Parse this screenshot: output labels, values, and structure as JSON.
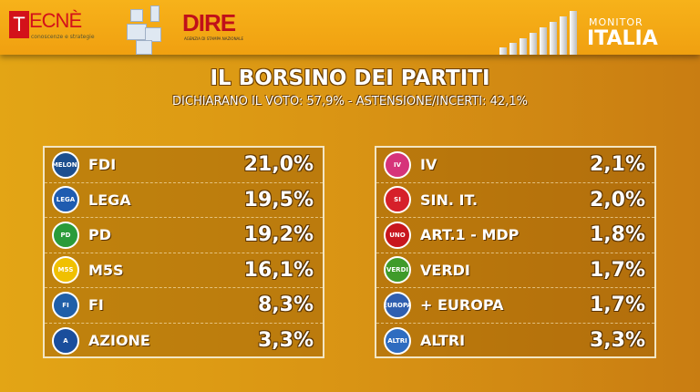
{
  "header": {
    "tecne_logo": "TECNÈ",
    "tecne_tagline": "conoscenze e strategie",
    "dire_logo": "DIRE",
    "dire_tagline": "AGENZIA DI STAMPA NAZIONALE",
    "monitor": "MONITOR",
    "italia": "ITALIA"
  },
  "title": "IL BORSINO DEI PARTITI",
  "subtitle": "DICHIARANO IL VOTO: 57,9% - ASTENSIONE/INCERTI: 42,1%",
  "left": [
    {
      "name": "FDI",
      "value": "21,0%",
      "logo": "MELONI",
      "color": "#1d4f8f"
    },
    {
      "name": "LEGA",
      "value": "19,5%",
      "logo": "LEGA",
      "color": "#1f5cb0"
    },
    {
      "name": "PD",
      "value": "19,2%",
      "logo": "PD",
      "color": "#2a9b3a"
    },
    {
      "name": "M5S",
      "value": "16,1%",
      "logo": "M5S",
      "color": "#f0c000"
    },
    {
      "name": "FI",
      "value": "8,3%",
      "logo": "FI",
      "color": "#1f5fa8"
    },
    {
      "name": "AZIONE",
      "value": "3,3%",
      "logo": "A",
      "color": "#1a4e9c"
    }
  ],
  "right": [
    {
      "name": "IV",
      "value": "2,1%",
      "logo": "IV",
      "color": "#d6337a"
    },
    {
      "name": "SIN. IT.",
      "value": "2,0%",
      "logo": "SI",
      "color": "#d6202a"
    },
    {
      "name": "ART.1 - MDP",
      "value": "1,8%",
      "logo": "UNO",
      "color": "#c8161e"
    },
    {
      "name": "VERDI",
      "value": "1,7%",
      "logo": "VERDI",
      "color": "#3f9b2a"
    },
    {
      "name": "+ EUROPA",
      "value": "1,7%",
      "logo": "EUROPA",
      "color": "#2f5fb0"
    },
    {
      "name": "ALTRI",
      "value": "3,3%",
      "logo": "ALTRI",
      "color": "#2e6cc0"
    }
  ]
}
